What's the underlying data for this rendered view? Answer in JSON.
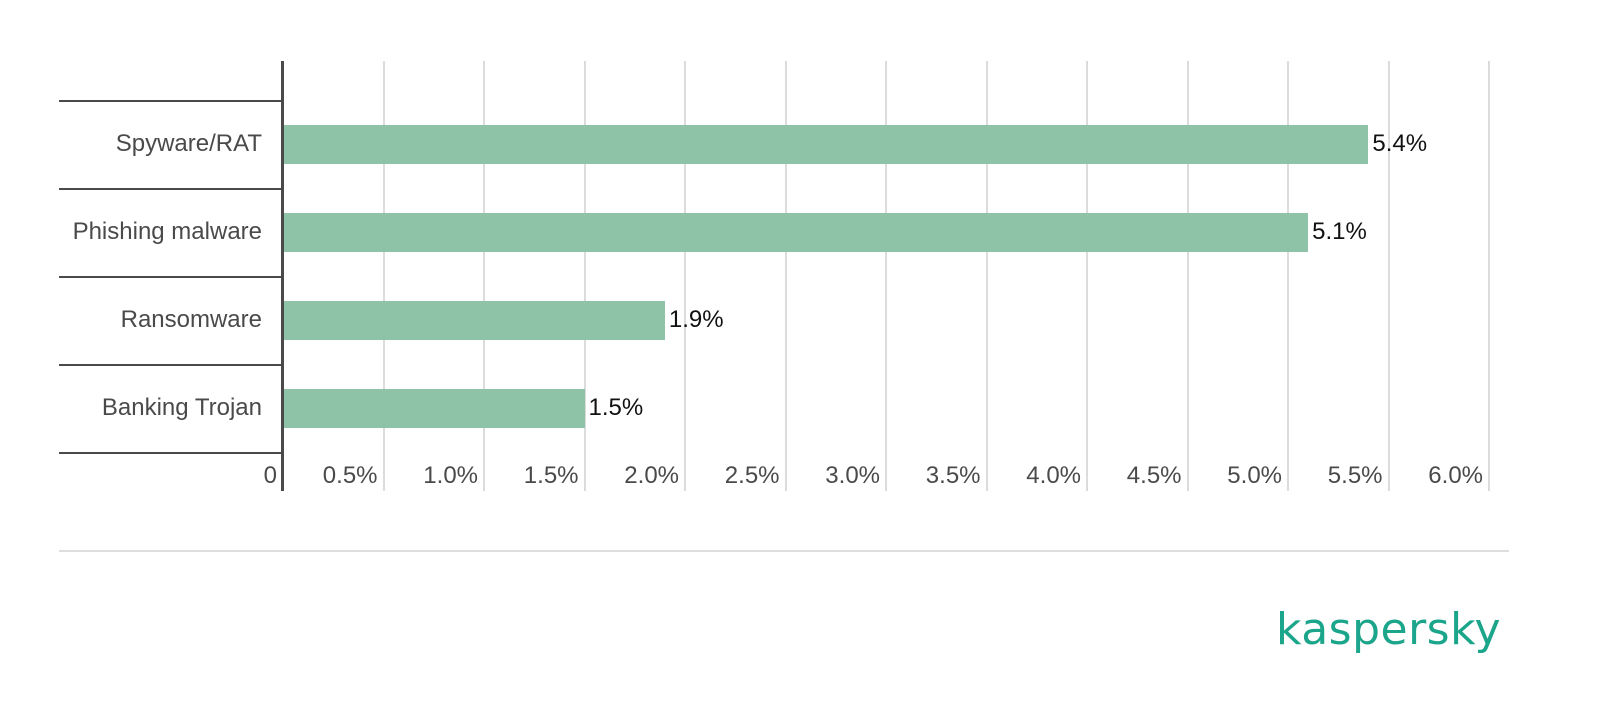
{
  "chart_data": {
    "type": "bar",
    "orientation": "horizontal",
    "title": "",
    "xlabel": "",
    "ylabel": "",
    "categories": [
      "Spyware/RAT",
      "Phishing malware",
      "Ransomware",
      "Banking Trojan"
    ],
    "values": [
      5.4,
      5.1,
      1.9,
      1.5
    ],
    "value_labels": [
      "5.4%",
      "5.1%",
      "1.9%",
      "1.5%"
    ],
    "xlim": [
      0,
      6.0
    ],
    "x_ticks": [
      0,
      0.5,
      1.0,
      1.5,
      2.0,
      2.5,
      3.0,
      3.5,
      4.0,
      4.5,
      5.0,
      5.5,
      6.0
    ],
    "x_tick_labels": [
      "0",
      "0.5%",
      "1.0%",
      "1.5%",
      "2.0%",
      "2.5%",
      "3.0%",
      "3.5%",
      "4.0%",
      "4.5%",
      "5.0%",
      "5.5%",
      "6.0%"
    ],
    "grid": true,
    "legend": "none",
    "bar_color": "#8fc3a8"
  },
  "branding": {
    "logo_text": "kaspersky",
    "logo_color": "#1ba58a"
  },
  "colors": {
    "bar": "#8fc3a8",
    "axis": "#4a4a4a",
    "grid": "#dcdcdc",
    "label": "#4a4a4a",
    "value_label": "#111111"
  }
}
